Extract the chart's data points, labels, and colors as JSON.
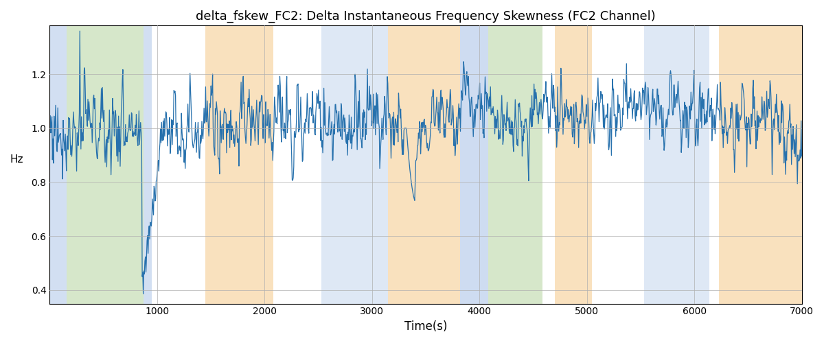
{
  "title": "delta_fskew_FC2: Delta Instantaneous Frequency Skewness (FC2 Channel)",
  "xlabel": "Time(s)",
  "ylabel": "Hz",
  "xlim": [
    0,
    7000
  ],
  "ylim": [
    0.35,
    1.38
  ],
  "yticks": [
    0.4,
    0.6,
    0.8,
    1.0,
    1.2
  ],
  "xticks": [
    1000,
    2000,
    3000,
    4000,
    5000,
    6000,
    7000
  ],
  "line_color": "#2771ad",
  "line_width": 0.9,
  "bands": [
    {
      "xmin": 0,
      "xmax": 160,
      "color": "#aec6e8",
      "alpha": 0.55
    },
    {
      "xmin": 160,
      "xmax": 870,
      "color": "#b5d5a0",
      "alpha": 0.55
    },
    {
      "xmin": 870,
      "xmax": 950,
      "color": "#aec6e8",
      "alpha": 0.55
    },
    {
      "xmin": 1450,
      "xmax": 2080,
      "color": "#f5c98a",
      "alpha": 0.55
    },
    {
      "xmin": 2530,
      "xmax": 3150,
      "color": "#aec6e8",
      "alpha": 0.4
    },
    {
      "xmin": 3150,
      "xmax": 3820,
      "color": "#f5c98a",
      "alpha": 0.55
    },
    {
      "xmin": 3820,
      "xmax": 4080,
      "color": "#aec6e8",
      "alpha": 0.6
    },
    {
      "xmin": 4080,
      "xmax": 4590,
      "color": "#b5d5a0",
      "alpha": 0.55
    },
    {
      "xmin": 4700,
      "xmax": 5050,
      "color": "#f5c98a",
      "alpha": 0.55
    },
    {
      "xmin": 5530,
      "xmax": 6140,
      "color": "#aec6e8",
      "alpha": 0.4
    },
    {
      "xmin": 6230,
      "xmax": 7000,
      "color": "#f5c98a",
      "alpha": 0.55
    }
  ],
  "seed": 77,
  "n_points": 1400
}
